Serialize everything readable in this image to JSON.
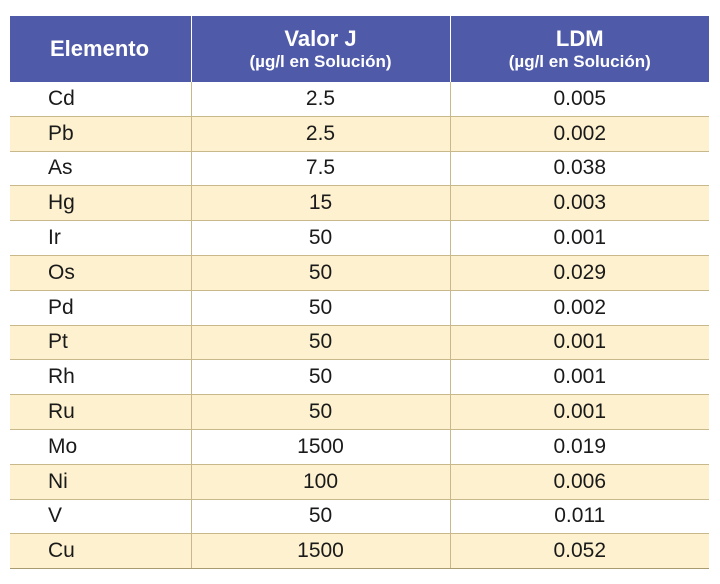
{
  "table": {
    "headers": [
      {
        "main": "Elemento",
        "sub": ""
      },
      {
        "main": "Valor J",
        "sub": "(µg/l en Solución)"
      },
      {
        "main": "LDM",
        "sub": "(µg/l en Solución)"
      }
    ],
    "rows": [
      {
        "element": "Cd",
        "valor_j": "2.5",
        "ldm": "0.005"
      },
      {
        "element": "Pb",
        "valor_j": "2.5",
        "ldm": "0.002"
      },
      {
        "element": "As",
        "valor_j": "7.5",
        "ldm": "0.038"
      },
      {
        "element": "Hg",
        "valor_j": "15",
        "ldm": "0.003"
      },
      {
        "element": "Ir",
        "valor_j": "50",
        "ldm": "0.001"
      },
      {
        "element": "Os",
        "valor_j": "50",
        "ldm": "0.029"
      },
      {
        "element": "Pd",
        "valor_j": "50",
        "ldm": "0.002"
      },
      {
        "element": "Pt",
        "valor_j": "50",
        "ldm": "0.001"
      },
      {
        "element": "Rh",
        "valor_j": "50",
        "ldm": "0.001"
      },
      {
        "element": "Ru",
        "valor_j": "50",
        "ldm": "0.001"
      },
      {
        "element": "Mo",
        "valor_j": "1500",
        "ldm": "0.019"
      },
      {
        "element": "Ni",
        "valor_j": "100",
        "ldm": "0.006"
      },
      {
        "element": "V",
        "valor_j": "50",
        "ldm": "0.011"
      },
      {
        "element": "Cu",
        "valor_j": "1500",
        "ldm": "0.052"
      }
    ]
  },
  "colors": {
    "header_bg": "#4f5aa8",
    "header_text": "#ffffff",
    "row_alt_bg": "#fdf1cf",
    "row_bg": "#ffffff",
    "border": "#c9b98a"
  }
}
